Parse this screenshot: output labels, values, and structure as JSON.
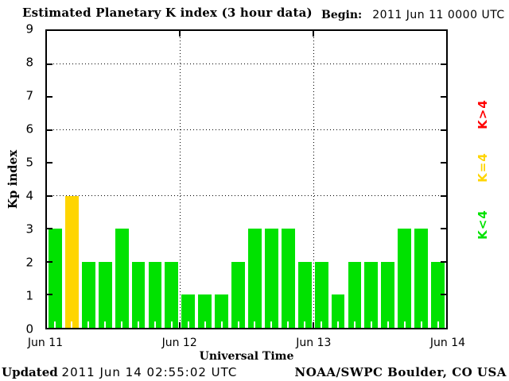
{
  "title": "Estimated Planetary K index (3 hour data)",
  "begin": {
    "label": "Begin:",
    "value": "2011 Jun 11 0000 UTC"
  },
  "y_axis": {
    "label": "Kp index",
    "ticks": [
      0,
      1,
      2,
      3,
      4,
      5,
      6,
      7,
      8,
      9
    ]
  },
  "x_axis": {
    "label": "Universal Time",
    "ticks": [
      "Jun 11",
      "Jun 12",
      "Jun 13",
      "Jun 14"
    ]
  },
  "legend": [
    {
      "label": "K>4",
      "color": "#ff0000"
    },
    {
      "label": "K=4",
      "color": "#ffd500"
    },
    {
      "label": "K<4",
      "color": "#00e200"
    }
  ],
  "footer": {
    "updated_label": "Updated",
    "updated_value": "2011 Jun 14 02:55:02 UTC",
    "credit": "NOAA/SWPC Boulder, CO USA"
  },
  "chart_data": {
    "type": "bar",
    "title": "Estimated Planetary K index (3 hour data)",
    "xlabel": "Universal Time",
    "ylabel": "Kp index",
    "ylim": [
      0,
      9
    ],
    "yticks": [
      0,
      1,
      2,
      3,
      4,
      5,
      6,
      7,
      8,
      9
    ],
    "grid_y": [
      4,
      6,
      8
    ],
    "bin_hours": 3,
    "begin": "2011 Jun 11 0000 UTC",
    "x_day_labels": [
      "Jun 11",
      "Jun 12",
      "Jun 13",
      "Jun 14"
    ],
    "series": [
      {
        "day": "Jun 11",
        "values": [
          3,
          4,
          2,
          2,
          3,
          2,
          2,
          2
        ]
      },
      {
        "day": "Jun 12",
        "values": [
          1,
          1,
          1,
          2,
          3,
          3,
          3,
          2
        ]
      },
      {
        "day": "Jun 13",
        "values": [
          2,
          1,
          2,
          2,
          2,
          3,
          3,
          2
        ]
      }
    ],
    "color_rules": {
      "below_4": "#00e200",
      "equal_4": "#ffd500",
      "above_4": "#ff0000"
    },
    "legend_position": "right"
  }
}
